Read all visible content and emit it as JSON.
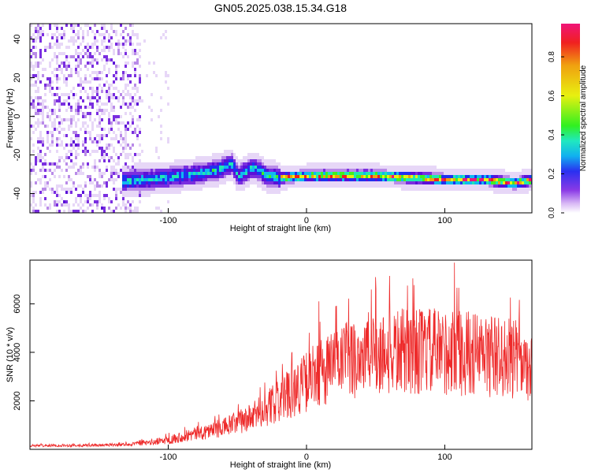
{
  "title": "GN05.2025.038.15.34.G18",
  "colors": {
    "signal_line": "#ee2a2a",
    "colormap": [
      "#ffffff",
      "#e7d7f7",
      "#b98be8",
      "#7a2ee0",
      "#5b10d8",
      "#2030f0",
      "#10b8f0",
      "#20e8b0",
      "#40f020",
      "#e8f010",
      "#f0a010",
      "#f02020",
      "#f01478"
    ]
  },
  "chart_data": [
    {
      "type": "heatmap",
      "xlabel": "Height of straight line (km)",
      "ylabel": "Frequency (Hz)",
      "colorbar_label": "Normalized spectral amplitude",
      "xlim": [
        -200,
        163
      ],
      "ylim": [
        -50,
        48
      ],
      "xticks": [
        -100,
        0,
        100
      ],
      "yticks": [
        -40,
        -20,
        0,
        20,
        40
      ],
      "colorbar_range": [
        0,
        0.97
      ],
      "colorbar_ticks": [
        0.0,
        0.2,
        0.4,
        0.6,
        0.8
      ],
      "ridge": {
        "description_points_x": [
          -135,
          -120,
          -100,
          -80,
          -65,
          -55,
          -50,
          -45,
          -40,
          -35,
          -30,
          -20,
          0,
          50,
          100,
          130,
          150,
          163
        ],
        "description_points_y": [
          -33,
          -32,
          -31,
          -29,
          -27,
          -24,
          -30,
          -28,
          -26,
          -27,
          -30,
          -31,
          -30,
          -30,
          -32,
          -32,
          -34,
          -32
        ]
      },
      "noise_region_x": [
        -200,
        -120
      ],
      "grid": false
    },
    {
      "type": "line",
      "xlabel": "Height of straight line (km)",
      "ylabel": "SNR (10 * v/v)",
      "xlim": [
        -200,
        163
      ],
      "ylim": [
        0,
        7800
      ],
      "xticks": [
        -100,
        0,
        100
      ],
      "yticks": [
        2000,
        4000,
        6000
      ],
      "envelope_x": [
        -200,
        -150,
        -130,
        -110,
        -100,
        -80,
        -60,
        -40,
        -20,
        0,
        20,
        40,
        60,
        80,
        100,
        120,
        140,
        163
      ],
      "envelope_y": [
        150,
        170,
        200,
        300,
        400,
        650,
        900,
        1300,
        2000,
        2800,
        3500,
        3900,
        4000,
        4050,
        4000,
        3950,
        3800,
        3600
      ],
      "peaks": [
        {
          "x": 107,
          "y": 7700
        },
        {
          "x": 60,
          "y": 7150
        },
        {
          "x": 77,
          "y": 7050
        },
        {
          "x": 50,
          "y": 7100
        },
        {
          "x": 9,
          "y": 6100
        }
      ],
      "grid": false
    }
  ]
}
